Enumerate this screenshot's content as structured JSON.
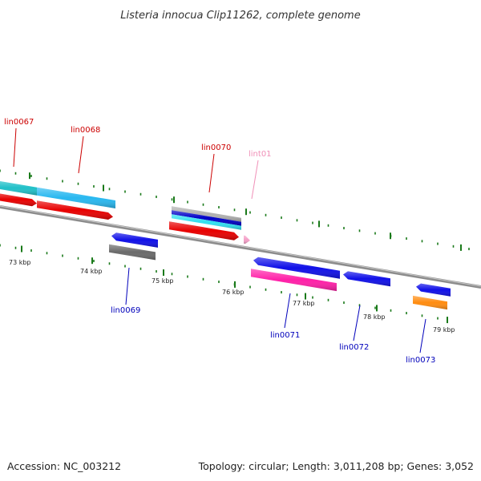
{
  "title": "Listeria innocua Clip11262, complete genome",
  "footer": {
    "accession": "Accession: NC_003212",
    "summary": "Topology: circular; Length: 3,011,208 bp; Genes: 3,052"
  },
  "colors": {
    "backbone": "#8c8c8c",
    "ticks": "#1a7a1a",
    "label_forward": "#cc0000",
    "label_reverse": "#0000bb",
    "label_trna": "#f090b8"
  },
  "ruler": [
    {
      "label": "73 kbp"
    },
    {
      "label": "74 kbp"
    },
    {
      "label": "75 kbp"
    },
    {
      "label": "76 kbp"
    },
    {
      "label": "77 kbp"
    },
    {
      "label": "78 kbp"
    },
    {
      "label": "79 kbp"
    }
  ],
  "gene_labels": [
    {
      "text": "lin0067",
      "strand": "forward"
    },
    {
      "text": "lin0068",
      "strand": "forward"
    },
    {
      "text": "lin0070",
      "strand": "forward"
    },
    {
      "text": "lint01",
      "strand": "trna"
    },
    {
      "text": "lin0069",
      "strand": "reverse"
    },
    {
      "text": "lin0071",
      "strand": "reverse"
    },
    {
      "text": "lin0072",
      "strand": "reverse"
    },
    {
      "text": "lin0073",
      "strand": "reverse"
    }
  ],
  "features": [
    {
      "name": "cds-lin0067-forward",
      "color": "#e80000"
    },
    {
      "name": "cds-lin0068-forward",
      "color": "#e80000"
    },
    {
      "name": "cds-lin0070-forward",
      "color": "#e80000"
    },
    {
      "name": "trna-lint01-forward",
      "color": "#f4a0c8"
    },
    {
      "name": "cluster-lin0067-top",
      "color": "#20c0c8"
    },
    {
      "name": "cluster-lin0068-top",
      "color": "#28b8f0"
    },
    {
      "name": "cluster-lin0070-gray",
      "color": "#b0b0b0"
    },
    {
      "name": "cluster-lin0070-blue",
      "color": "#0000c8"
    },
    {
      "name": "cluster-lin0070-cyan",
      "color": "#30e0f0"
    },
    {
      "name": "cds-lin0069-reverse",
      "color": "#1010e8"
    },
    {
      "name": "cds-lin0071-reverse",
      "color": "#1010e8"
    },
    {
      "name": "cds-lin0072-reverse",
      "color": "#1010e8"
    },
    {
      "name": "cds-lin0073-reverse",
      "color": "#1010e8"
    },
    {
      "name": "cluster-lin0069-gray",
      "color": "#6a6a6a"
    },
    {
      "name": "cluster-lin0071-magenta",
      "color": "#ff20a8"
    },
    {
      "name": "cluster-lin0073-orange",
      "color": "#ff8c10"
    }
  ]
}
